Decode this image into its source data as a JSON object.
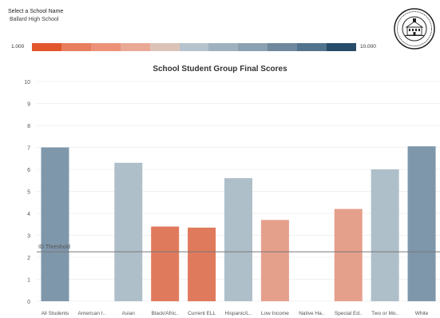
{
  "filter": {
    "label": "Select a School Name",
    "value": "Ballard High School"
  },
  "legend": {
    "min_label": "1.000",
    "max_label": "10.000",
    "colors": [
      "#e2562c",
      "#e87e5e",
      "#eb9279",
      "#eaa897",
      "#dcc3b8",
      "#b6c2cc",
      "#9eb1be",
      "#8ba0b1",
      "#6f889d",
      "#52738c",
      "#274c69"
    ]
  },
  "seal": {
    "icon": "school-district-seal-icon"
  },
  "chart_data": {
    "type": "bar",
    "title": "School Student Group Final Scores",
    "xlabel": "",
    "ylabel": "",
    "ylim": [
      0,
      10
    ],
    "yticks": [
      0,
      1,
      2,
      3,
      4,
      5,
      6,
      7,
      8,
      9,
      10
    ],
    "categories": [
      "All Students",
      "American I..",
      "Asian",
      "Black/Afric..",
      "Current ELL",
      "Hispanic/L..",
      "Low Income",
      "Native Ha..",
      "Special Ed..",
      "Two or Mo..",
      "White"
    ],
    "values": [
      7.0,
      null,
      6.3,
      3.4,
      3.35,
      5.6,
      3.7,
      null,
      4.2,
      6.0,
      7.05
    ],
    "colors": [
      "#7f97ab",
      null,
      "#afbfca",
      "#e07a5c",
      "#e07a5c",
      "#afbfca",
      "#e5a08c",
      null,
      "#e5a08c",
      "#afbfca",
      "#7f97ab"
    ],
    "reference_line": {
      "label": "ID Threshold",
      "value": 2.25
    },
    "grid": true
  }
}
